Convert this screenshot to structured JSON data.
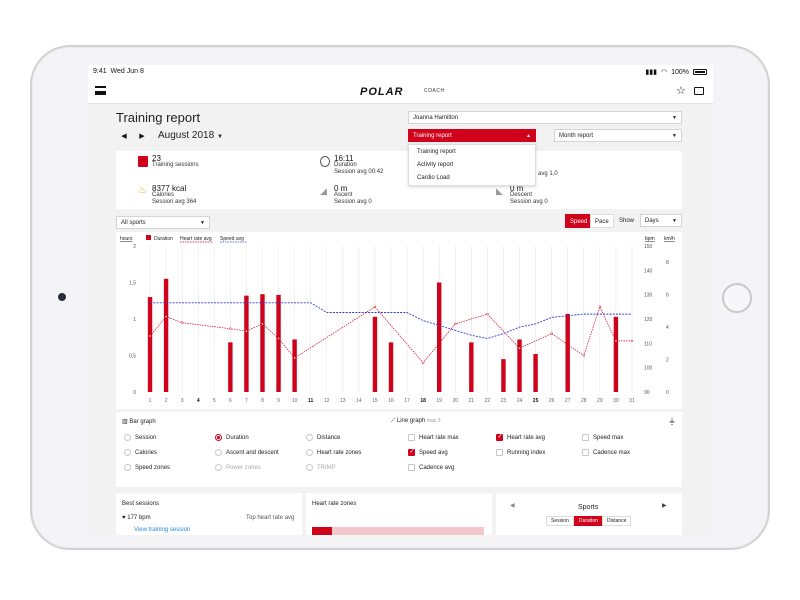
{
  "status_bar": {
    "time": "9:41",
    "date": "Wed Jun 8",
    "battery": "100%"
  },
  "app": {
    "brand": "POLAR",
    "product": "COACH"
  },
  "page_title": "Training report",
  "period": {
    "label": "August 2018"
  },
  "athlete_select": {
    "value": "Joanna Hamilton"
  },
  "report_select": {
    "value": "Training report",
    "options": [
      "Training report",
      "Activity report",
      "Cardio Load"
    ]
  },
  "month_select": {
    "value": "Month report"
  },
  "summary": {
    "sessions": {
      "value": "23",
      "label": "Training sessions"
    },
    "duration": {
      "value": "16:11",
      "label": "Duration",
      "sub": "Session avg 00:42"
    },
    "calories": {
      "value": "8377 kcal",
      "label": "Calories",
      "sub": "Session avg 364"
    },
    "ascent": {
      "value": "0 m",
      "label": "Ascent",
      "sub": "Session avg 0"
    },
    "descent": {
      "value": "0 m",
      "label": "Descent",
      "sub": "Session avg 0"
    },
    "partial_avg": "avg 1,0"
  },
  "sport_filter": {
    "value": "All sports"
  },
  "toggles": {
    "speed": "Speed",
    "pace": "Pace",
    "show": "Show",
    "days": "Days"
  },
  "chart_data": {
    "type": "bar",
    "legend": [
      "Duration",
      "Heart rate avg",
      "Speed avg"
    ],
    "units_left": "hours",
    "units_right": [
      "bpm",
      "km/h"
    ],
    "x": [
      1,
      2,
      3,
      4,
      5,
      6,
      7,
      8,
      9,
      10,
      11,
      12,
      13,
      14,
      15,
      16,
      17,
      18,
      19,
      20,
      21,
      22,
      23,
      24,
      25,
      26,
      27,
      28,
      29,
      30,
      31
    ],
    "x_bold": [
      4,
      11,
      18,
      25
    ],
    "y_ticks_left": [
      "0",
      "0,5",
      "1",
      "1,5",
      "2"
    ],
    "y_ticks_bpm": [
      "90",
      "100",
      "110",
      "120",
      "130",
      "140",
      "150"
    ],
    "y_ticks_kmh": [
      "0",
      "2",
      "4",
      "6",
      "8"
    ],
    "ylim_left": [
      0,
      2
    ],
    "ylim_bpm": [
      90,
      150
    ],
    "ylim_kmh": [
      0,
      9
    ],
    "series": [
      {
        "name": "Duration",
        "type": "bar",
        "values": [
          1.3,
          1.55,
          0,
          0,
          0,
          0.68,
          1.32,
          1.34,
          1.33,
          0.72,
          0,
          0,
          0,
          0,
          1.03,
          0.68,
          0,
          0,
          1.5,
          0,
          0.68,
          0,
          0.45,
          0.72,
          0.52,
          0,
          1.07,
          0,
          0,
          1.03,
          0
        ]
      },
      {
        "name": "Heart rate avg",
        "type": "line",
        "points": [
          [
            1,
            113
          ],
          [
            2,
            121
          ],
          [
            3,
            118.5
          ],
          [
            6,
            116
          ],
          [
            7,
            115
          ],
          [
            8,
            118
          ],
          [
            9,
            112
          ],
          [
            10,
            104
          ],
          [
            15,
            125
          ],
          [
            18,
            102
          ],
          [
            20,
            118
          ],
          [
            22,
            122
          ],
          [
            24,
            108
          ],
          [
            26,
            114
          ],
          [
            28,
            105
          ],
          [
            29,
            125
          ],
          [
            30,
            111
          ],
          [
            31,
            111
          ]
        ]
      },
      {
        "name": "Speed avg",
        "type": "line",
        "points": [
          [
            1,
            5.5
          ],
          [
            10,
            5.5
          ],
          [
            11,
            5.5
          ],
          [
            12,
            4.9
          ],
          [
            13,
            4.9
          ],
          [
            14,
            4.9
          ],
          [
            15,
            4.9
          ],
          [
            16,
            4.9
          ],
          [
            17,
            4.9
          ],
          [
            18,
            4.4
          ],
          [
            19,
            4.1
          ],
          [
            20,
            3.8
          ],
          [
            21,
            3.5
          ],
          [
            22,
            3.3
          ],
          [
            23,
            3.6
          ],
          [
            24,
            4.0
          ],
          [
            25,
            4.2
          ],
          [
            26,
            4.6
          ],
          [
            27,
            4.7
          ],
          [
            28,
            4.8
          ],
          [
            29,
            4.8
          ],
          [
            30,
            4.8
          ],
          [
            31,
            4.8
          ]
        ]
      }
    ]
  },
  "bar_graph": {
    "title": "Bar graph",
    "options": [
      {
        "label": "Session",
        "selected": false,
        "disabled": false
      },
      {
        "label": "Duration",
        "selected": true,
        "disabled": false
      },
      {
        "label": "Distance",
        "selected": false,
        "disabled": false
      },
      {
        "label": "Calories",
        "selected": false,
        "disabled": false
      },
      {
        "label": "Ascent and descent",
        "selected": false,
        "disabled": false
      },
      {
        "label": "Heart rate zones",
        "selected": false,
        "disabled": false
      },
      {
        "label": "Speed zones",
        "selected": false,
        "disabled": false
      },
      {
        "label": "Power zones",
        "selected": false,
        "disabled": true
      },
      {
        "label": "TRIMP",
        "selected": false,
        "disabled": true
      }
    ]
  },
  "line_graph": {
    "title": "Line graph",
    "note": "max 3",
    "options": [
      {
        "label": "Heart rate max",
        "checked": false
      },
      {
        "label": "Heart rate avg",
        "checked": true
      },
      {
        "label": "Speed max",
        "checked": false
      },
      {
        "label": "Speed avg",
        "checked": true
      },
      {
        "label": "Running index",
        "checked": false
      },
      {
        "label": "Cadence max",
        "checked": false
      },
      {
        "label": "Cadence avg",
        "checked": false
      }
    ]
  },
  "best_sessions": {
    "title": "Best sessions",
    "value": "177 bpm",
    "label": "Top heart rate avg",
    "link": "View training session"
  },
  "hr_zones": {
    "title": "Heart rate zones"
  },
  "sports": {
    "title": "Sports",
    "tabs": [
      "Session",
      "Duration",
      "Distance"
    ]
  },
  "colors": {
    "accent": "#d0021b",
    "speed_line": "#2c3fd1"
  }
}
